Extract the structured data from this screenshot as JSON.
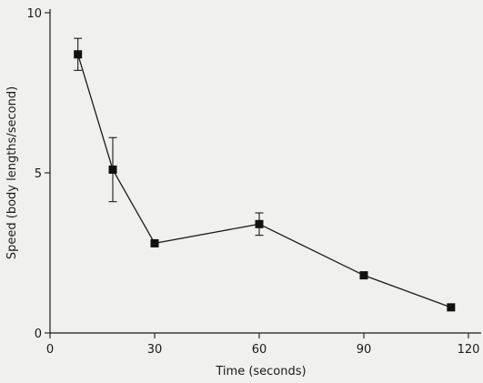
{
  "chart_data": {
    "type": "line",
    "title": "",
    "xlabel": "Time (seconds)",
    "ylabel": "Speed (body lengths/second)",
    "xlim": [
      0,
      120
    ],
    "ylim": [
      0,
      10
    ],
    "xticks": [
      0,
      30,
      60,
      90,
      120
    ],
    "yticks": [
      0,
      5,
      10
    ],
    "grid": false,
    "series": [
      {
        "x": [
          8,
          18,
          30,
          60,
          90,
          115
        ],
        "y": [
          8.7,
          5.1,
          2.8,
          3.4,
          1.8,
          0.8
        ],
        "error": [
          0.5,
          1.0,
          0.0,
          0.35,
          0.0,
          0.0
        ],
        "marker": "square",
        "color": "#111111"
      }
    ]
  }
}
